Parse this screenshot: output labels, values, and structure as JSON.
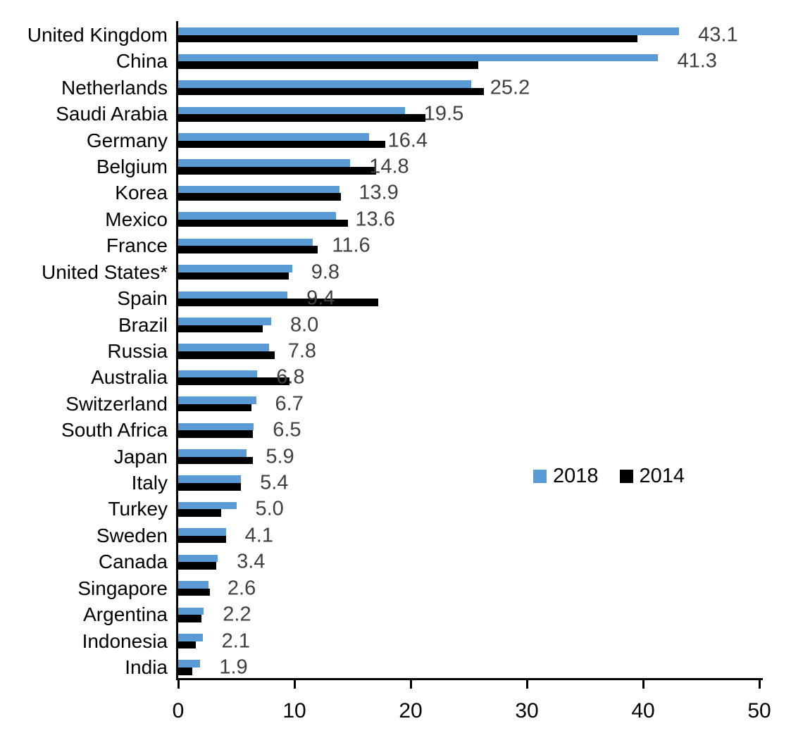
{
  "chart_data": {
    "type": "bar",
    "orientation": "horizontal",
    "title": "",
    "xlabel": "",
    "ylabel": "",
    "xlim": [
      0,
      50
    ],
    "x_ticks": [
      0,
      10,
      20,
      30,
      40,
      50
    ],
    "grid": false,
    "legend_position": "middle-right",
    "categories": [
      "United Kingdom",
      "China",
      "Netherlands",
      "Saudi Arabia",
      "Germany",
      "Belgium",
      "Korea",
      "Mexico",
      "France",
      "United States*",
      "Spain",
      "Brazil",
      "Russia",
      "Australia",
      "Switzerland",
      "South Africa",
      "Japan",
      "Italy",
      "Turkey",
      "Sweden",
      "Canada",
      "Singapore",
      "Argentina",
      "Indonesia",
      "India"
    ],
    "series": [
      {
        "name": "2018",
        "color": "#5B9BD5",
        "values": [
          43.1,
          41.3,
          25.2,
          19.5,
          16.4,
          14.8,
          13.9,
          13.6,
          11.6,
          9.8,
          9.4,
          8.0,
          7.8,
          6.8,
          6.7,
          6.5,
          5.9,
          5.4,
          5.0,
          4.1,
          3.4,
          2.6,
          2.2,
          2.1,
          1.9
        ]
      },
      {
        "name": "2014",
        "color": "#000000",
        "values": [
          39.5,
          25.8,
          26.3,
          21.3,
          17.8,
          17.0,
          14.0,
          14.6,
          12.0,
          9.5,
          17.2,
          7.3,
          8.3,
          9.6,
          6.3,
          6.4,
          6.4,
          5.4,
          3.7,
          4.1,
          3.3,
          2.7,
          2.0,
          1.5,
          1.2
        ]
      }
    ],
    "value_labels": [
      "43.1",
      "41.3",
      "25.2",
      "19.5",
      "16.4",
      "14.8",
      "13.9",
      "13.6",
      "11.6",
      "9.8",
      "9.4",
      "8.0",
      "7.8",
      "6.8",
      "6.7",
      "6.5",
      "5.9",
      "5.4",
      "5.0",
      "4.1",
      "3.4",
      "2.6",
      "2.2",
      "2.1",
      "1.9"
    ],
    "value_label_series": "2018"
  },
  "legend": {
    "items": [
      {
        "label": "2018",
        "color": "#5B9BD5"
      },
      {
        "label": "2014",
        "color": "#000000"
      }
    ]
  },
  "colors": {
    "bar_2018": "#5B9BD5",
    "bar_2014": "#000000",
    "value_label": "#404040",
    "axis": "#000000",
    "background": "#ffffff"
  }
}
